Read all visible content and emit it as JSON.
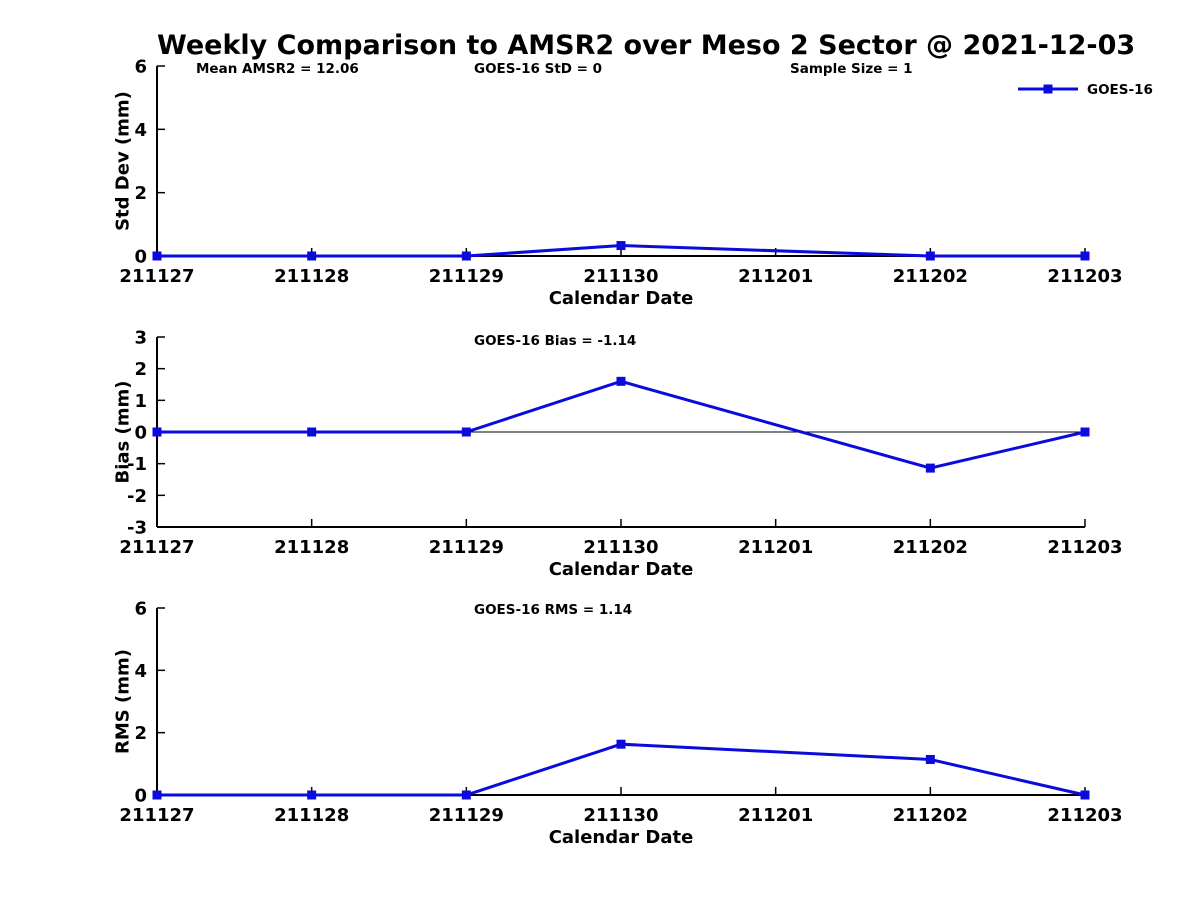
{
  "page": {
    "title": "Weekly Comparison to AMSR2 over Meso 2 Sector @ 2021-12-03"
  },
  "colors": {
    "line": "#0b0bdd",
    "marker": "#0b0bdd",
    "axis": "#000000",
    "text": "#000000",
    "background": "#ffffff"
  },
  "legend": {
    "label": "GOES-16",
    "position": "top-right"
  },
  "chart_data": [
    {
      "type": "line",
      "panel": "std-dev",
      "annotations": [
        {
          "text": "Mean AMSR2 = 12.06",
          "x": 196
        },
        {
          "text": "GOES-16 StD = 0",
          "x": 474
        },
        {
          "text": "Sample Size = 1",
          "x": 790
        }
      ],
      "ylabel": "Std Dev (mm)",
      "xlabel": "Calendar Date",
      "ylim": [
        0,
        6
      ],
      "yticks": [
        0,
        2,
        4,
        6
      ],
      "categories": [
        "211127",
        "211128",
        "211129",
        "211130",
        "211201",
        "211202",
        "211203"
      ],
      "series": [
        {
          "name": "GOES-16",
          "values": [
            0,
            0,
            0,
            0.33,
            null,
            0,
            0
          ]
        }
      ],
      "zero_line": false,
      "legend_visible": true,
      "grid": false
    },
    {
      "type": "line",
      "panel": "bias",
      "annotations": [
        {
          "text": "GOES-16 Bias  = -1.14",
          "x": 474
        }
      ],
      "ylabel": "Bias (mm)",
      "xlabel": "Calendar Date",
      "ylim": [
        -3,
        3
      ],
      "yticks": [
        -3,
        -2,
        -1,
        0,
        1,
        2,
        3
      ],
      "categories": [
        "211127",
        "211128",
        "211129",
        "211130",
        "211201",
        "211202",
        "211203"
      ],
      "series": [
        {
          "name": "GOES-16",
          "values": [
            0,
            0,
            0,
            1.6,
            null,
            -1.14,
            0
          ]
        }
      ],
      "zero_line": true,
      "legend_visible": false,
      "grid": false
    },
    {
      "type": "line",
      "panel": "rms",
      "annotations": [
        {
          "text": "GOES-16 RMS = 1.14",
          "x": 474
        }
      ],
      "ylabel": "RMS (mm)",
      "xlabel": "Calendar Date",
      "ylim": [
        0,
        6
      ],
      "yticks": [
        0,
        2,
        4,
        6
      ],
      "categories": [
        "211127",
        "211128",
        "211129",
        "211130",
        "211201",
        "211202",
        "211203"
      ],
      "series": [
        {
          "name": "GOES-16",
          "values": [
            0,
            0,
            0,
            1.63,
            null,
            1.14,
            0
          ]
        }
      ],
      "zero_line": false,
      "legend_visible": false,
      "grid": false
    }
  ]
}
